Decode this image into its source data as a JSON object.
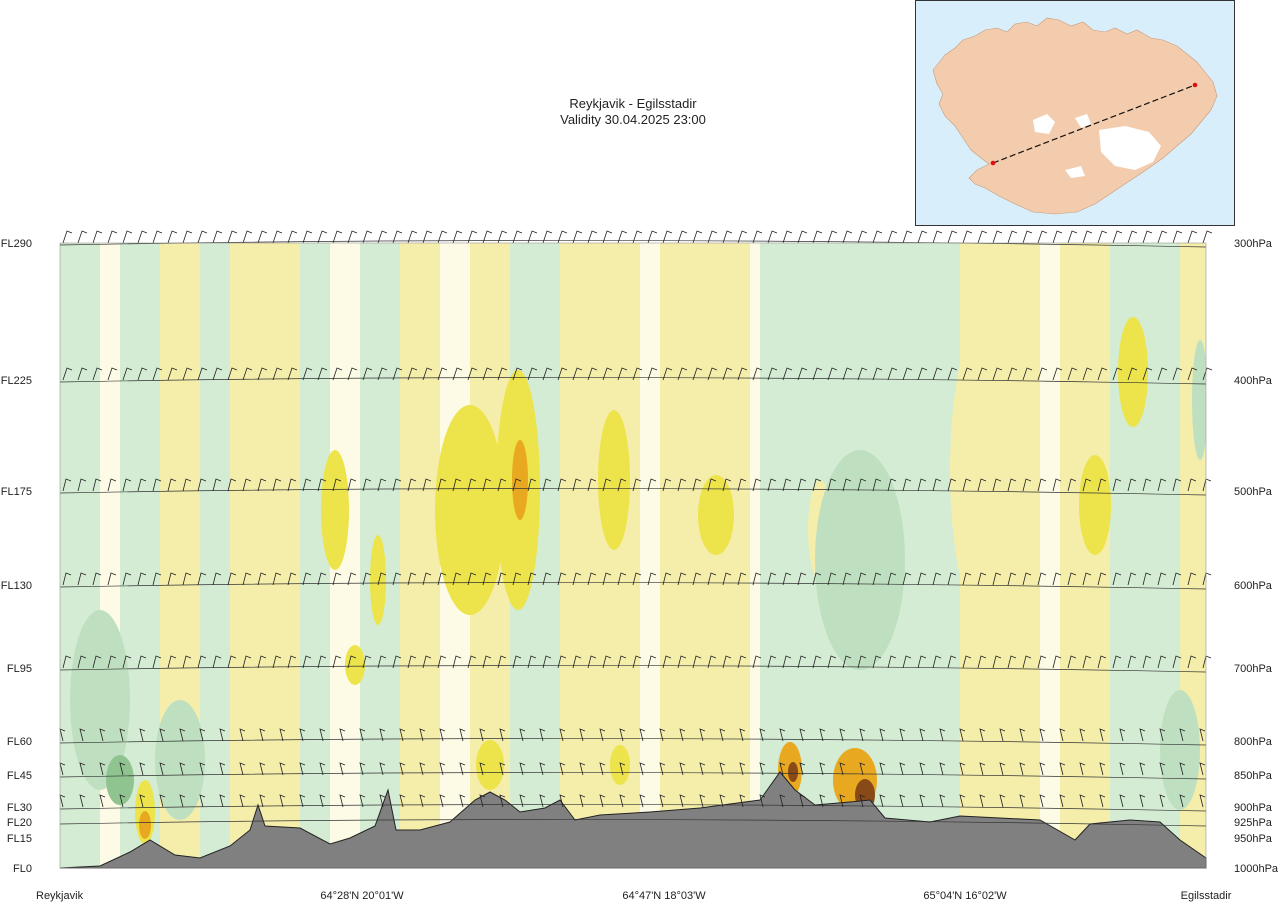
{
  "header": {
    "route": "Reykjavik - Egilsstadir",
    "validity": "Validity 30.04.2025 23:00"
  },
  "map": {
    "water_color": "#d9eefb",
    "land_color": "#f4c8a8",
    "ice_color": "#ffffff",
    "route_start_marker": "red",
    "route_end_marker": "red"
  },
  "chart_data": {
    "type": "cross-section",
    "title": "",
    "levels": [
      {
        "fl": "FL290",
        "p": "300hPa"
      },
      {
        "fl": "FL225",
        "p": "400hPa"
      },
      {
        "fl": "FL175",
        "p": "500hPa"
      },
      {
        "fl": "FL130",
        "p": "600hPa"
      },
      {
        "fl": "FL95",
        "p": "700hPa"
      },
      {
        "fl": "FL60",
        "p": "800hPa"
      },
      {
        "fl": "FL45",
        "p": "850hPa"
      },
      {
        "fl": "FL30",
        "p": "900hPa"
      },
      {
        "fl": "FL20",
        "p": "925hPa"
      },
      {
        "fl": "FL15",
        "p": "950hPa"
      },
      {
        "fl": "FL0",
        "p": "1000hPa"
      }
    ],
    "x_labels": [
      "Reykjavik",
      "64°28'N 20°01'W",
      "64°47'N 18°03'W",
      "65°04'N 16°02'W",
      "Egilsstadir"
    ],
    "colors": {
      "green_light": "#d4ecd4",
      "green_mid": "#bfe0c0",
      "green_dark": "#8fc490",
      "pale": "#fdfbe6",
      "yellow_light": "#f5eeaa",
      "yellow": "#ede34a",
      "orange": "#e8a820",
      "brown": "#8a4a18",
      "terrain": "#808080"
    },
    "terrain_note": "grey terrain profile along route"
  }
}
